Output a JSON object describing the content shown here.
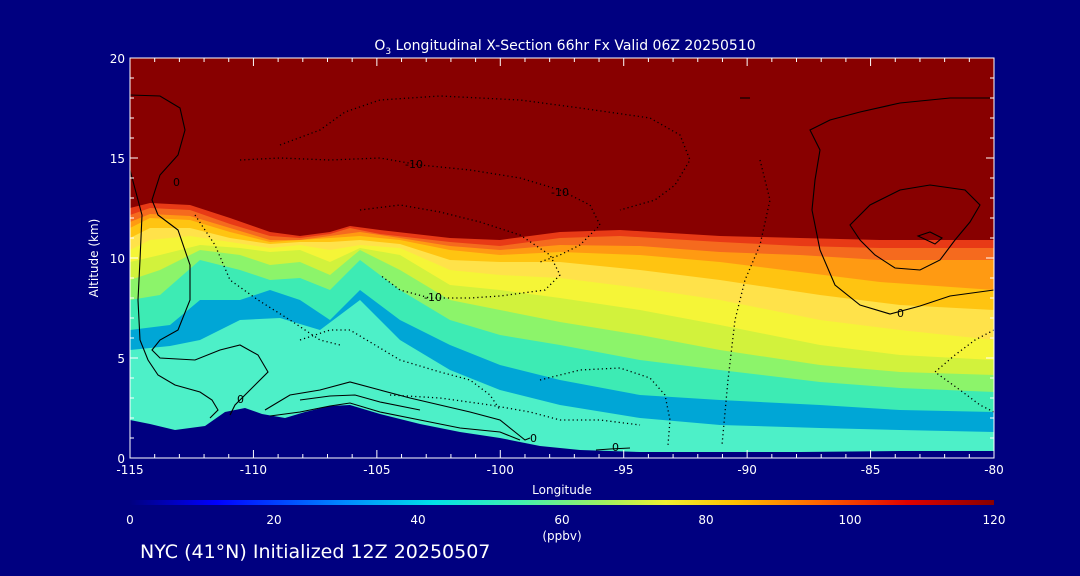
{
  "chart_data": {
    "type": "heatmap",
    "title_prefix": "O",
    "title_sub": "3",
    "title_rest": " Longitudinal X-Section 66hr  Fx Valid 06Z 20250510",
    "xlabel": "Longitude",
    "ylabel": "Altitude (km)",
    "xlim": [
      -115,
      -80
    ],
    "ylim": [
      0,
      20
    ],
    "x_ticks": [
      "-115",
      "-110",
      "-105",
      "-100",
      "-95",
      "-90",
      "-85",
      "-80"
    ],
    "y_ticks": [
      "0",
      "5",
      "10",
      "15",
      "20"
    ],
    "colorbar": {
      "min": 0,
      "max": 120,
      "ticks": [
        "0",
        "20",
        "40",
        "60",
        "80",
        "100",
        "120"
      ],
      "unit": "(ppbv)"
    },
    "contour_labels": [
      "-10",
      "-10",
      "-10",
      "0",
      "0",
      "0",
      "0",
      "0"
    ],
    "layers": [
      {
        "color": "#00A6D6",
        "level": 30
      },
      {
        "color": "#3DEBB4",
        "level": 45
      },
      {
        "color": "#8CF46A",
        "level": 55
      },
      {
        "color": "#D2F23C",
        "level": 62
      },
      {
        "color": "#F5F537",
        "level": 68
      },
      {
        "color": "#FFE24A",
        "level": 75
      },
      {
        "color": "#FFC411",
        "level": 82
      },
      {
        "color": "#FF9A12",
        "level": 90
      },
      {
        "color": "#F56A1E",
        "level": 98
      },
      {
        "color": "#E83A16",
        "level": 108
      },
      {
        "color": "#880000",
        "level": 120
      }
    ]
  },
  "footer": "NYC (41°N) Initialized 12Z 20250507"
}
